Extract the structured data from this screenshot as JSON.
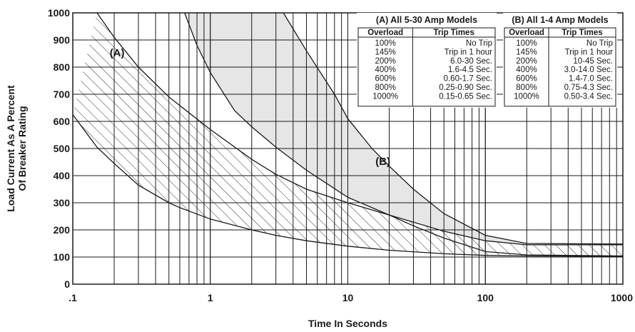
{
  "chart_data": {
    "type": "area",
    "xlabel": "Time In Seconds",
    "ylabel_lines": [
      "Load Current As A Percent",
      "Of Breaker Rating"
    ],
    "x_scale": "log",
    "xlim": [
      0.1,
      1000
    ],
    "ylim": [
      0,
      1000
    ],
    "x_ticks": [
      {
        "value": 0.1,
        "label": ".1"
      },
      {
        "value": 1,
        "label": "1"
      },
      {
        "value": 10,
        "label": "10"
      },
      {
        "value": 100,
        "label": "100"
      },
      {
        "value": 1000,
        "label": "1000"
      }
    ],
    "y_ticks": [
      {
        "value": 0,
        "label": "0"
      },
      {
        "value": 100,
        "label": "100"
      },
      {
        "value": 200,
        "label": "200"
      },
      {
        "value": 300,
        "label": "300"
      },
      {
        "value": 400,
        "label": "400"
      },
      {
        "value": 500,
        "label": "500"
      },
      {
        "value": 600,
        "label": "600"
      },
      {
        "value": 700,
        "label": "700"
      },
      {
        "value": 800,
        "label": "800"
      },
      {
        "value": 900,
        "label": "900"
      },
      {
        "value": 1000,
        "label": "1000"
      }
    ],
    "grid": true,
    "colors": {
      "band_b_fill": "#e6e6e6",
      "line": "#1a1a1a",
      "grid": "#1a1a1a"
    },
    "series": [
      {
        "name": "(A)",
        "fill": "hatched",
        "label_at": {
          "x": 0.21,
          "y": 840
        },
        "lower": [
          [
            0.1,
            625
          ],
          [
            0.15,
            505
          ],
          [
            0.2,
            445
          ],
          [
            0.3,
            365
          ],
          [
            0.5,
            300
          ],
          [
            0.6,
            282
          ],
          [
            1,
            240
          ],
          [
            2,
            200
          ],
          [
            3,
            180
          ],
          [
            5,
            160
          ],
          [
            10,
            140
          ],
          [
            20,
            125
          ],
          [
            50,
            112
          ],
          [
            100,
            106
          ],
          [
            200,
            104
          ],
          [
            1000,
            102
          ]
        ],
        "upper": [
          [
            0.15,
            1000
          ],
          [
            0.2,
            910
          ],
          [
            0.3,
            800
          ],
          [
            0.5,
            690
          ],
          [
            1,
            570
          ],
          [
            2,
            460
          ],
          [
            3,
            405
          ],
          [
            5,
            350
          ],
          [
            10,
            300
          ],
          [
            20,
            255
          ],
          [
            50,
            195
          ],
          [
            100,
            160
          ],
          [
            200,
            145
          ],
          [
            1000,
            145
          ]
        ]
      },
      {
        "name": "(B)",
        "fill": "shaded",
        "label_at": {
          "x": 18,
          "y": 440
        },
        "lower": [
          [
            0.65,
            1000
          ],
          [
            0.8,
            880
          ],
          [
            1,
            780
          ],
          [
            1.5,
            640
          ],
          [
            2,
            580
          ],
          [
            3,
            505
          ],
          [
            5,
            420
          ],
          [
            10,
            320
          ],
          [
            20,
            255
          ],
          [
            30,
            215
          ],
          [
            50,
            170
          ],
          [
            100,
            120
          ],
          [
            200,
            108
          ],
          [
            1000,
            104
          ]
        ],
        "upper": [
          [
            3.4,
            1000
          ],
          [
            5,
            860
          ],
          [
            8,
            700
          ],
          [
            10,
            610
          ],
          [
            15,
            500
          ],
          [
            20,
            435
          ],
          [
            30,
            350
          ],
          [
            50,
            260
          ],
          [
            100,
            180
          ],
          [
            200,
            150
          ],
          [
            1000,
            148
          ]
        ]
      }
    ],
    "tables": [
      {
        "title": "(A) All 5-30 Amp Models",
        "headers": [
          "Overload",
          "Trip Times"
        ],
        "rows": [
          [
            "100%",
            "No Trip"
          ],
          [
            "145%",
            "Trip in 1 hour"
          ],
          [
            "200%",
            "6.0-30 Sec."
          ],
          [
            "400%",
            "1.6-4.5 Sec."
          ],
          [
            "600%",
            "0.60-1.7 Sec."
          ],
          [
            "800%",
            "0.25-0.90 Sec."
          ],
          [
            "1000%",
            "0.15-0.65 Sec."
          ]
        ]
      },
      {
        "title": "(B) All 1-4 Amp Models",
        "headers": [
          "Overload",
          "Trip Times"
        ],
        "rows": [
          [
            "100%",
            "No Trip"
          ],
          [
            "145%",
            "Trip in 1 hour"
          ],
          [
            "200%",
            "10-45 Sec."
          ],
          [
            "400%",
            "3.0-14.0 Sec."
          ],
          [
            "600%",
            "1.4-7.0 Sec."
          ],
          [
            "800%",
            "0.75-4.3 Sec."
          ],
          [
            "1000%",
            "0.50-3.4 Sec."
          ]
        ]
      }
    ]
  }
}
